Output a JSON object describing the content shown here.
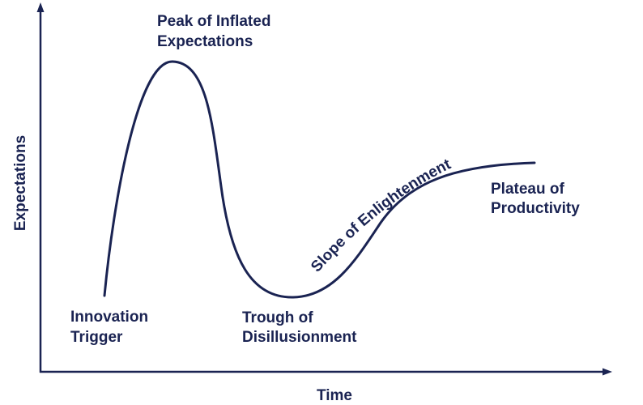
{
  "colors": {
    "ink": "#1a2352",
    "background": "#ffffff"
  },
  "axes": {
    "y_label": "Expectations",
    "x_label": "Time"
  },
  "phases": [
    {
      "line1": "Innovation",
      "line2": "Trigger"
    },
    {
      "line1": "Peak of Inflated",
      "line2": "Expectations"
    },
    {
      "line1": "Trough of",
      "line2": "Disillusionment"
    },
    {
      "line1": "Slope of Enlightenment",
      "line2": ""
    },
    {
      "line1": "Plateau of",
      "line2": "Productivity"
    }
  ]
}
